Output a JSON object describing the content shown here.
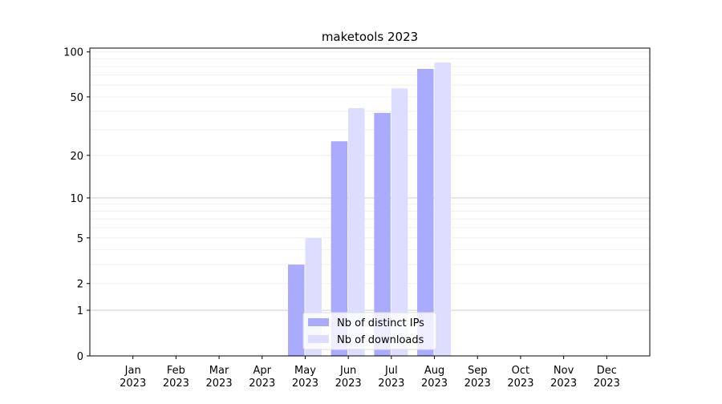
{
  "chart_data": {
    "type": "bar",
    "title": "maketools 2023",
    "categories": [
      [
        "Jan",
        "2023"
      ],
      [
        "Feb",
        "2023"
      ],
      [
        "Mar",
        "2023"
      ],
      [
        "Apr",
        "2023"
      ],
      [
        "May",
        "2023"
      ],
      [
        "Jun",
        "2023"
      ],
      [
        "Jul",
        "2023"
      ],
      [
        "Aug",
        "2023"
      ],
      [
        "Sep",
        "2023"
      ],
      [
        "Oct",
        "2023"
      ],
      [
        "Nov",
        "2023"
      ],
      [
        "Dec",
        "2023"
      ]
    ],
    "series": [
      {
        "name": "Nb of distinct IPs",
        "color": "#aaaaff",
        "values": [
          0,
          0,
          0,
          0,
          3,
          25,
          39,
          77,
          0,
          0,
          0,
          0
        ]
      },
      {
        "name": "Nb of downloads",
        "color": "#ddddff",
        "values": [
          0,
          0,
          0,
          0,
          5,
          42,
          57,
          85,
          0,
          0,
          0,
          0
        ]
      }
    ],
    "yscale": "log1p",
    "ylim": [
      0,
      106
    ],
    "yticks": [
      0,
      1,
      2,
      5,
      10,
      20,
      50,
      100
    ],
    "grid_major": [
      1,
      10
    ],
    "grid_minor": [
      2,
      3,
      4,
      5,
      6,
      7,
      8,
      9,
      20,
      30,
      40,
      50,
      60,
      70,
      80,
      90,
      100
    ],
    "legend": "lower center"
  }
}
